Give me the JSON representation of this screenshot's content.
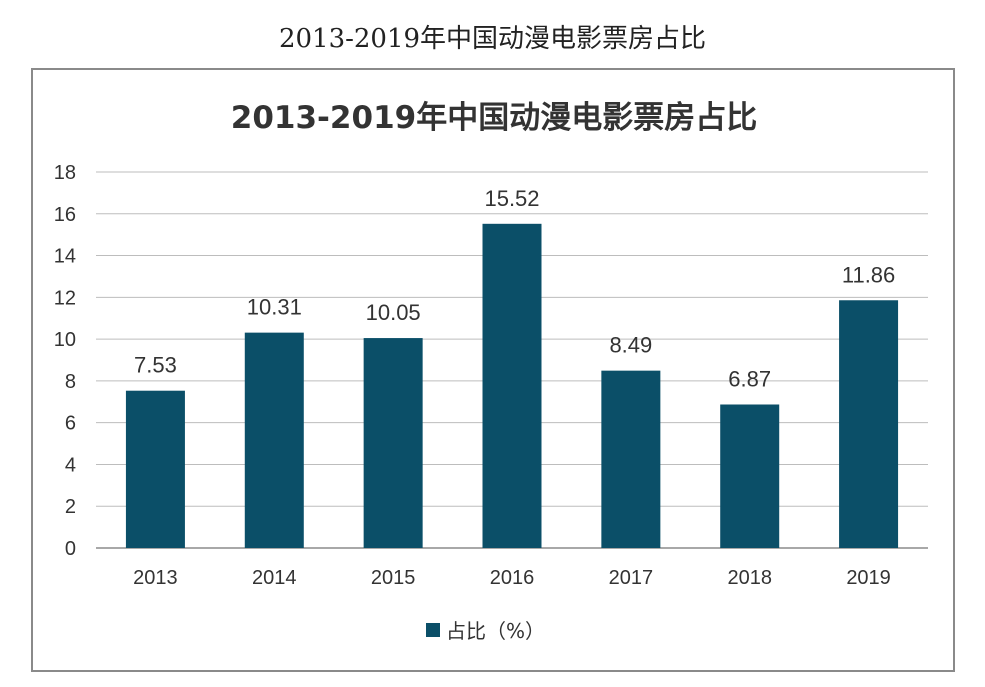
{
  "page": {
    "title": "2013-2019年中国动漫电影票房占比"
  },
  "chart_data": {
    "type": "bar",
    "title": "2013-2019年中国动漫电影票房占比",
    "categories": [
      "2013",
      "2014",
      "2015",
      "2016",
      "2017",
      "2018",
      "2019"
    ],
    "series": [
      {
        "name": "占比（%）",
        "values": [
          7.53,
          10.31,
          10.05,
          15.52,
          8.49,
          6.87,
          11.86
        ],
        "color": "#0b4f68"
      }
    ],
    "data_labels": [
      "7.53",
      "10.31",
      "10.05",
      "15.52",
      "8.49",
      "6.87",
      "11.86"
    ],
    "y_ticks": [
      "0",
      "2",
      "4",
      "6",
      "8",
      "10",
      "12",
      "14",
      "16",
      "18"
    ],
    "ylim": [
      0,
      18
    ],
    "grid": true,
    "legend_position": "bottom"
  }
}
